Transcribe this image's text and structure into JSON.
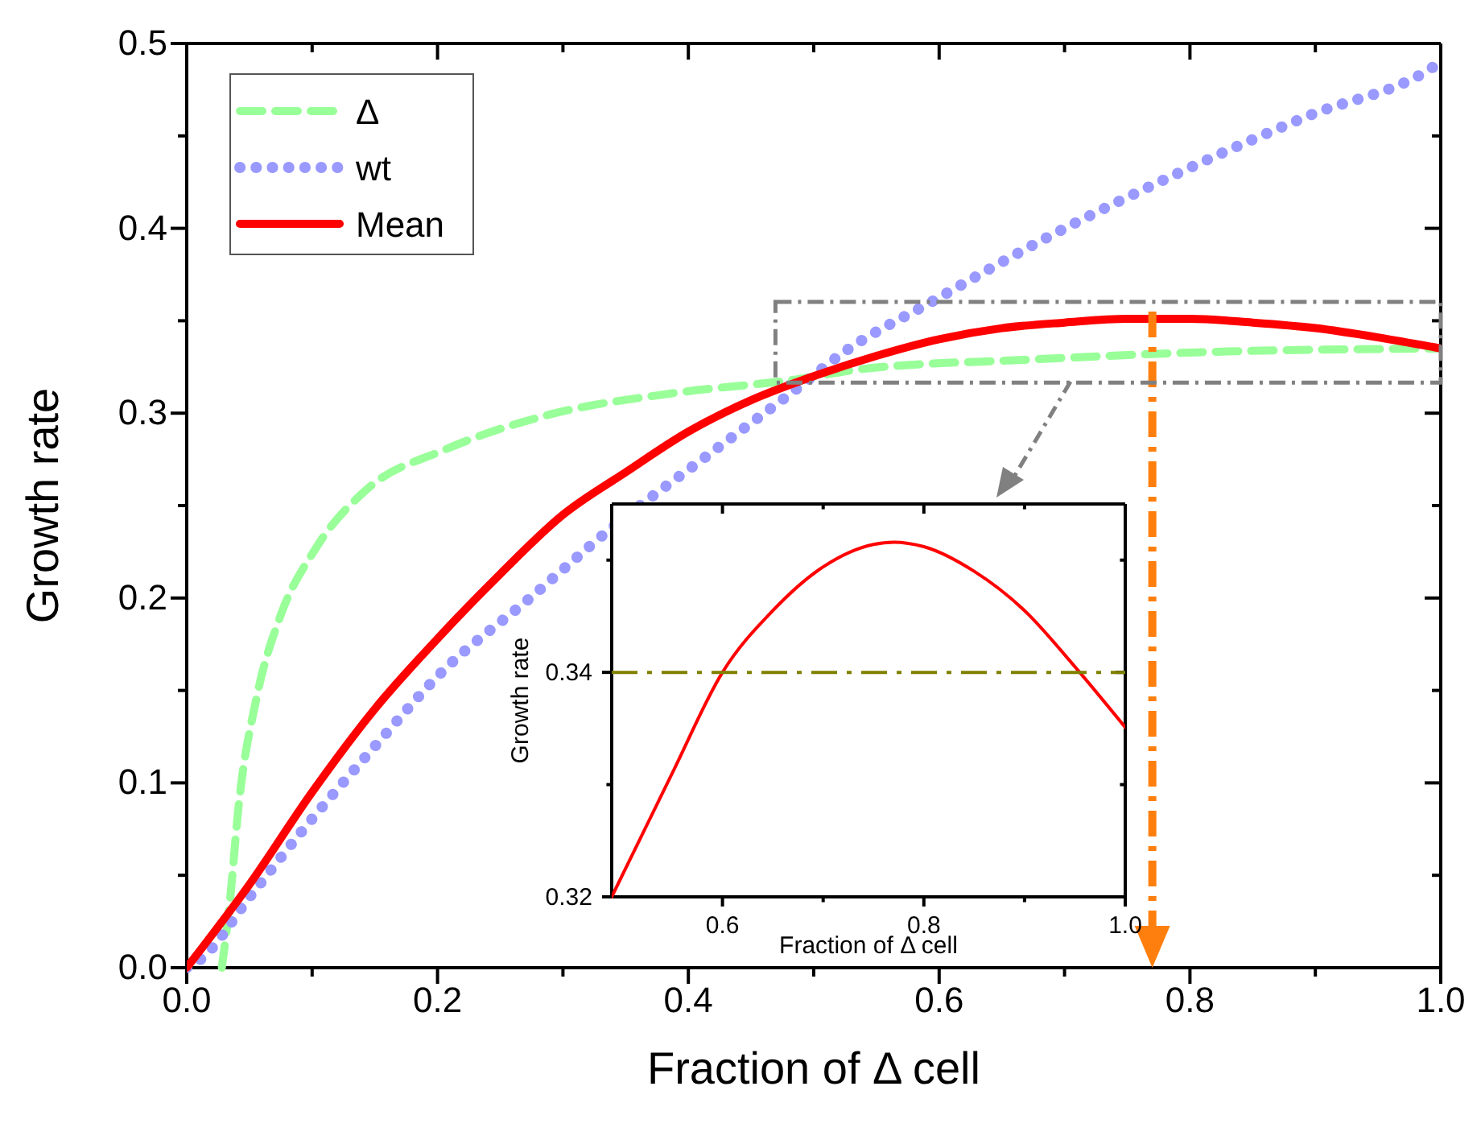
{
  "chart_data": [
    {
      "type": "line",
      "xlabel": "Fraction of Δ cell",
      "ylabel": "Growth rate",
      "xlim": [
        0,
        1
      ],
      "ylim": [
        0,
        0.5
      ],
      "xticks": [
        {
          "value": 0,
          "label": "0.0"
        },
        {
          "value": 0.1,
          "label": null
        },
        {
          "value": 0.2,
          "label": "0.2"
        },
        {
          "value": 0.3,
          "label": null
        },
        {
          "value": 0.4,
          "label": "0.4"
        },
        {
          "value": 0.5,
          "label": null
        },
        {
          "value": 0.6,
          "label": "0.6"
        },
        {
          "value": 0.7,
          "label": null
        },
        {
          "value": 0.8,
          "label": "0.8"
        },
        {
          "value": 0.9,
          "label": null
        },
        {
          "value": 1,
          "label": "1.0"
        }
      ],
      "yticks": [
        {
          "value": 0,
          "label": "0.0"
        },
        {
          "value": 0.05,
          "label": null
        },
        {
          "value": 0.1,
          "label": "0.1"
        },
        {
          "value": 0.15,
          "label": null
        },
        {
          "value": 0.2,
          "label": "0.2"
        },
        {
          "value": 0.25,
          "label": null
        },
        {
          "value": 0.3,
          "label": "0.3"
        },
        {
          "value": 0.35,
          "label": null
        },
        {
          "value": 0.4,
          "label": "0.4"
        },
        {
          "value": 0.45,
          "label": null
        },
        {
          "value": 0.5,
          "label": "0.5"
        }
      ],
      "grid": false,
      "legend": "top left",
      "marker": "none",
      "ref_lines": [
        {
          "axis": "x",
          "value": 0.77,
          "color": "#ff7f0e",
          "line_style": "dashed"
        }
      ],
      "series": [
        {
          "name": "Δ",
          "color": "#99ff99",
          "line_style": "dashed",
          "x": [
            0.028,
            0.035,
            0.041,
            0.056,
            0.074,
            0.103,
            0.144,
            0.205,
            0.288,
            0.39,
            0.483,
            0.54,
            0.673,
            0.81,
            1.0
          ],
          "values": [
            0,
            0.04,
            0.085,
            0.147,
            0.189,
            0.227,
            0.259,
            0.28,
            0.299,
            0.311,
            0.318,
            0.324,
            0.329,
            0.333,
            0.335
          ]
        },
        {
          "name": "wt",
          "color": "#9999ff",
          "line_style": "dotted",
          "x": [
            0,
            0.01,
            0.051,
            0.092,
            0.149,
            0.205,
            0.272,
            0.339,
            0.421,
            0.488,
            0.522,
            0.596,
            0.686,
            0.788,
            0.895,
            0.991,
            1.0
          ],
          "values": [
            0,
            0.004,
            0.039,
            0.074,
            0.119,
            0.161,
            0.199,
            0.238,
            0.28,
            0.314,
            0.332,
            0.361,
            0.395,
            0.429,
            0.461,
            0.486,
            0.49
          ]
        },
        {
          "name": "Mean",
          "color": "#ff0000",
          "line_style": "solid",
          "x": [
            0,
            0.05,
            0.1,
            0.15,
            0.2,
            0.25,
            0.3,
            0.35,
            0.4,
            0.45,
            0.5,
            0.55,
            0.6,
            0.65,
            0.7,
            0.75,
            0.8,
            0.85,
            0.9,
            0.95,
            1.0
          ],
          "values": [
            0,
            0.045,
            0.095,
            0.14,
            0.178,
            0.213,
            0.245,
            0.268,
            0.29,
            0.307,
            0.32,
            0.331,
            0.34,
            0.346,
            0.349,
            0.351,
            0.351,
            0.349,
            0.346,
            0.341,
            0.335
          ]
        }
      ]
    },
    {
      "type": "line",
      "xlabel": "Fraction of Δ cell",
      "ylabel": "Growth rate",
      "xlim": [
        0.49,
        1
      ],
      "ylim": [
        0.32,
        0.355
      ],
      "xticks": [
        {
          "value": 0.6,
          "label": "0.6"
        },
        {
          "value": 0.7,
          "label": null
        },
        {
          "value": 0.8,
          "label": "0.8"
        },
        {
          "value": 0.9,
          "label": null
        },
        {
          "value": 1,
          "label": "1.0"
        }
      ],
      "yticks": [
        {
          "value": 0.32,
          "label": "0.32"
        },
        {
          "value": 0.33,
          "label": null
        },
        {
          "value": 0.34,
          "label": "0.34"
        },
        {
          "value": 0.35,
          "label": null
        }
      ],
      "grid": false,
      "marker": "none",
      "ref_lines": [
        {
          "axis": "y",
          "value": 0.34,
          "color": "#808000",
          "line_style": "dashed"
        }
      ],
      "series": [
        {
          "color": "#ff0000",
          "line_style": "solid",
          "x": [
            0.49,
            0.55,
            0.6,
            0.65,
            0.7,
            0.75,
            0.77,
            0.8,
            0.85,
            0.9,
            0.95,
            1.0
          ],
          "values": [
            0.32,
            0.331,
            0.34,
            0.3455,
            0.3494,
            0.3514,
            0.3516,
            0.3512,
            0.349,
            0.3455,
            0.3405,
            0.3351
          ]
        }
      ]
    }
  ]
}
